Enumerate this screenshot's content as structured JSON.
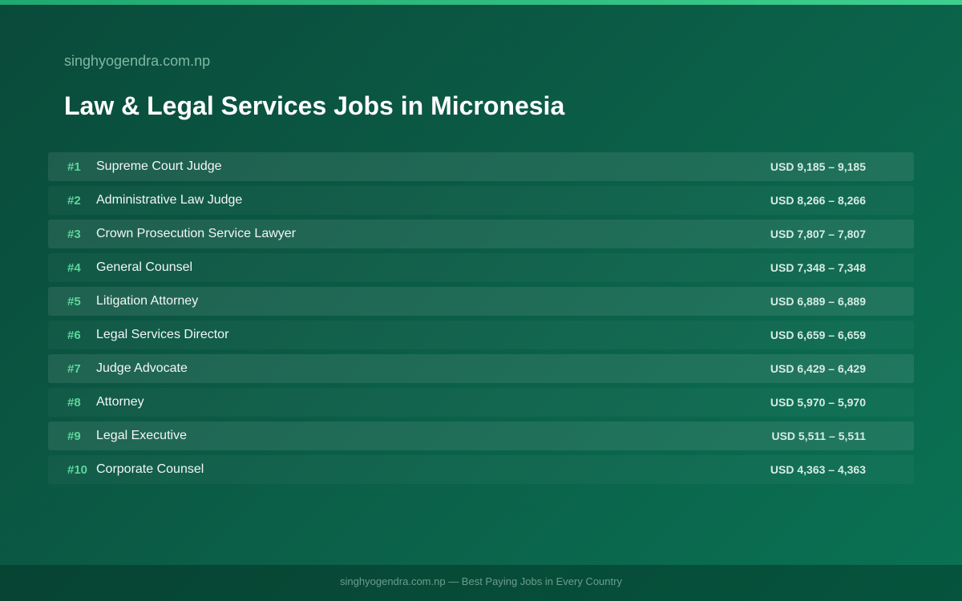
{
  "site": "singhyogendra.com.np",
  "title": "Law & Legal Services Jobs in Micronesia",
  "rows": [
    {
      "rank": "#1",
      "job": "Supreme Court Judge",
      "salary": "USD 9,185 – 9,185"
    },
    {
      "rank": "#2",
      "job": "Administrative Law Judge",
      "salary": "USD 8,266 – 8,266"
    },
    {
      "rank": "#3",
      "job": "Crown Prosecution Service Lawyer",
      "salary": "USD 7,807 – 7,807"
    },
    {
      "rank": "#4",
      "job": "General Counsel",
      "salary": "USD 7,348 – 7,348"
    },
    {
      "rank": "#5",
      "job": "Litigation Attorney",
      "salary": "USD 6,889 – 6,889"
    },
    {
      "rank": "#6",
      "job": "Legal Services Director",
      "salary": "USD 6,659 – 6,659"
    },
    {
      "rank": "#7",
      "job": "Judge Advocate",
      "salary": "USD 6,429 – 6,429"
    },
    {
      "rank": "#8",
      "job": "Attorney",
      "salary": "USD 5,970 – 5,970"
    },
    {
      "rank": "#9",
      "job": "Legal Executive",
      "salary": "USD 5,511 – 5,511"
    },
    {
      "rank": "#10",
      "job": "Corporate Counsel",
      "salary": "USD 4,363 – 4,363"
    }
  ],
  "footer": "singhyogendra.com.np — Best Paying Jobs in Every Country"
}
